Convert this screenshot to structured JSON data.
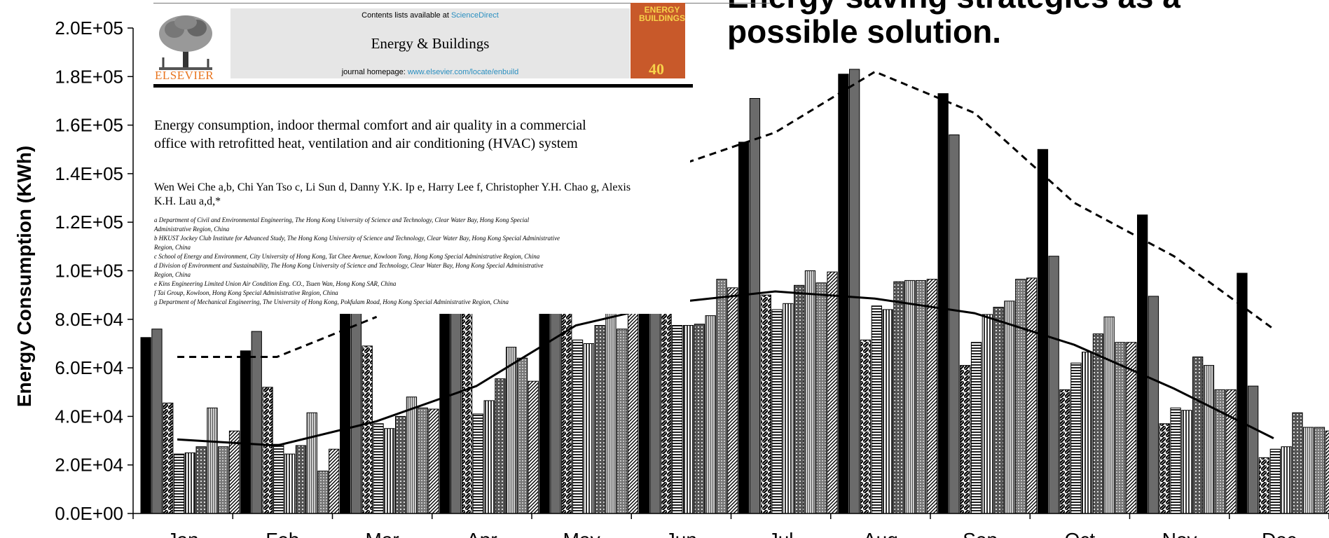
{
  "slide": {
    "title_line1": "Energy saving strategies as a",
    "title_line2": "possible solution."
  },
  "paper": {
    "contents_prefix": "Contents lists available at ",
    "contents_link": "ScienceDirect",
    "journal_name": "Energy & Buildings",
    "homepage_prefix": "journal homepage: ",
    "homepage_link": "www.elsevier.com/locate/enbuild",
    "publisher": "ELSEVIER",
    "cover_text": "ENERGY BUILDINGS",
    "cover_badge": "40",
    "title": "Energy consumption, indoor thermal comfort and air quality in a commercial office with retrofitted heat, ventilation and air conditioning (HVAC) system",
    "authors": "Wen Wei Che a,b, Chi Yan Tso c, Li Sun d, Danny Y.K. Ip e, Harry Lee f, Christopher Y.H. Chao g, Alexis K.H. Lau a,d,*",
    "affiliations": [
      "a Department of Civil and Environmental Engineering, The Hong Kong University of Science and Technology, Clear Water Bay, Hong Kong Special",
      "Administrative Region, China",
      "b HKUST Jockey Club Institute for Advanced Study, The Hong Kong University of Science and Technology, Clear Water Bay, Hong Kong Special Administrative",
      "Region, China",
      "c School of Energy and Environment, City University of Hong Kong, Tat Chee Avenue, Kowloon Tong, Hong Kong Special Administrative Region, China",
      "d Division of Environment and Sustainability, The Hong Kong University of Science and Technology, Clear Water Bay, Hong Kong Special Administrative",
      "Region, China",
      "e Kins Engineering Limited Union Air Condition Eng. CO., Tsuen Wan, Hong Kong SAR, China",
      "f Tai Group, Kowloon, Hong Kong Special Administrative Region, China",
      "g Department of Mechanical Engineering, The University of Hong Kong, Pokfulam Road, Hong Kong Special Administrative Region, China"
    ]
  },
  "colors": {
    "link": "#2a8fc0",
    "elsevier_orange": "#e8741e",
    "cover": "#c8592a"
  },
  "chart_data": {
    "type": "bar",
    "ylabel": "Energy Consumption (KWh)",
    "ylim": [
      0,
      200000
    ],
    "yticks": [
      "0.0E+00",
      "2.0E+04",
      "4.0E+04",
      "6.0E+04",
      "8.0E+04",
      "1.0E+05",
      "1.2E+05",
      "1.4E+05",
      "1.6E+05",
      "1.8E+05",
      "2.0E+05"
    ],
    "categories": [
      "Jan",
      "Feb",
      "Mar",
      "Apr",
      "May",
      "Jun",
      "Jul",
      "Aug",
      "Sep",
      "Oct",
      "Nov",
      "Dec"
    ],
    "series": [
      {
        "pattern": "black",
        "values": [
          72500,
          67000,
          120000,
          120000,
          120000,
          120000,
          153000,
          181000,
          173000,
          150000,
          123000,
          99000
        ]
      },
      {
        "pattern": "darkgray",
        "values": [
          76000,
          75000,
          120000,
          120000,
          120000,
          120000,
          171000,
          183000,
          156000,
          106000,
          89500,
          52500
        ]
      },
      {
        "pattern": "diagonal",
        "values": [
          45500,
          52000,
          69000,
          120000,
          120000,
          120000,
          90000,
          71500,
          61000,
          51000,
          37000,
          23000
        ]
      },
      {
        "pattern": "hlines",
        "values": [
          24500,
          28500,
          37000,
          41000,
          71500,
          77500,
          84000,
          85500,
          70500,
          62000,
          43500,
          26500
        ]
      },
      {
        "pattern": "vlines",
        "values": [
          25000,
          24500,
          35000,
          46500,
          70000,
          77500,
          86500,
          84000,
          82000,
          66500,
          42500,
          27500
        ]
      },
      {
        "pattern": "grid",
        "values": [
          27500,
          28000,
          40000,
          55500,
          77500,
          78000,
          94000,
          95500,
          85000,
          74000,
          64500,
          41500
        ]
      },
      {
        "pattern": "vlines-light",
        "values": [
          43500,
          41500,
          48000,
          68500,
          100000,
          81500,
          100000,
          96000,
          87500,
          81000,
          61000,
          35500
        ]
      },
      {
        "pattern": "dots",
        "values": [
          27500,
          17500,
          43500,
          64000,
          76000,
          96500,
          95000,
          96000,
          96500,
          70500,
          51000,
          35500
        ]
      },
      {
        "pattern": "diagonal-dense",
        "values": [
          34000,
          26500,
          43000,
          54500,
          120000,
          93000,
          99500,
          96500,
          97000,
          70500,
          51000,
          34000
        ]
      }
    ],
    "lines": [
      {
        "style": "dashed",
        "values": [
          64500,
          64500,
          81000,
          null,
          null,
          143000,
          157000,
          182000,
          165000,
          128000,
          106000,
          76000
        ]
      },
      {
        "style": "solid",
        "values": [
          30500,
          28000,
          38000,
          52500,
          77500,
          87000,
          91500,
          88500,
          82500,
          69500,
          51500,
          31000
        ]
      }
    ]
  }
}
